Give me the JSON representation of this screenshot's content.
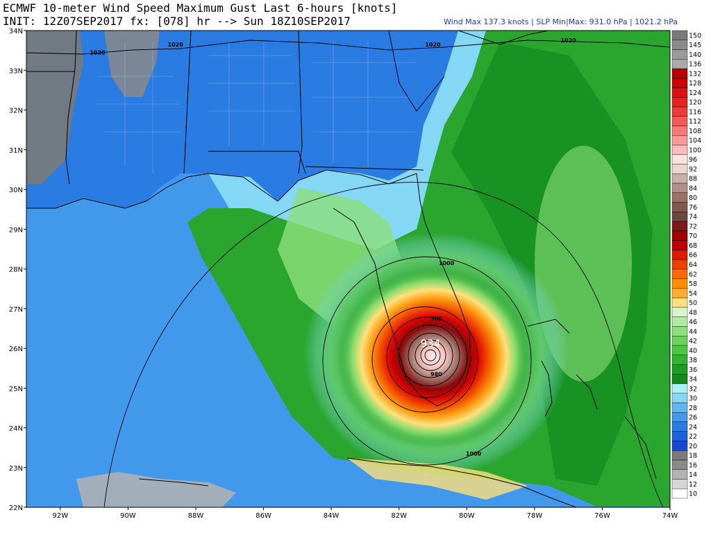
{
  "header": {
    "title": "ECMWF 10-meter Wind Speed Maximum Gust Last 6-hours [knots]",
    "subtitle": "INIT: 12Z07SEP2017 fx: [078] hr --> Sun 18Z10SEP2017",
    "stats": "Wind Max 137.3 knots | SLP Min|Max: 931.0 hPa | 1021.2 hPa"
  },
  "map": {
    "lat_labels": [
      "34N",
      "33N",
      "32N",
      "31N",
      "30N",
      "29N",
      "28N",
      "27N",
      "26N",
      "25N",
      "24N",
      "23N",
      "22N"
    ],
    "lon_labels": [
      "92W",
      "90W",
      "88W",
      "86W",
      "84W",
      "82W",
      "80W",
      "78W",
      "76W",
      "74W"
    ],
    "center_pressure_label": "934",
    "isobar_labels": [
      {
        "text": "1020",
        "lon": -88.6,
        "lat": 33.6
      },
      {
        "text": "1020",
        "lon": -90.9,
        "lat": 33.4
      },
      {
        "text": "1020",
        "lon": -81.0,
        "lat": 33.6
      },
      {
        "text": "1020",
        "lon": -77.0,
        "lat": 33.7
      },
      {
        "text": "1000",
        "lon": -80.6,
        "lat": 28.1
      },
      {
        "text": "980",
        "lon": -80.9,
        "lat": 26.7
      },
      {
        "text": "980",
        "lon": -80.9,
        "lat": 25.3
      },
      {
        "text": "1000",
        "lon": -79.8,
        "lat": 23.3
      }
    ]
  },
  "colorbar": {
    "levels": [
      "150",
      "145",
      "140",
      "136",
      "132",
      "128",
      "124",
      "120",
      "116",
      "112",
      "108",
      "104",
      "100",
      "96",
      "92",
      "88",
      "84",
      "80",
      "76",
      "74",
      "72",
      "70",
      "68",
      "66",
      "64",
      "62",
      "58",
      "54",
      "50",
      "48",
      "46",
      "44",
      "42",
      "40",
      "38",
      "36",
      "34",
      "32",
      "30",
      "28",
      "26",
      "24",
      "22",
      "20",
      "18",
      "16",
      "14",
      "12",
      "10"
    ],
    "colors": [
      "#7a7a7a",
      "#8a8a8a",
      "#9a9a9a",
      "#aaaaaa",
      "#ba0000",
      "#cc0000",
      "#dc1010",
      "#e82020",
      "#ec3b3b",
      "#f05a5a",
      "#f47a7a",
      "#f89a9a",
      "#fbbcbc",
      "#f7e4e0",
      "#e9d6cf",
      "#c9b0a8",
      "#b29088",
      "#9a7268",
      "#805850",
      "#6a463e",
      "#7a1a1a",
      "#a00000",
      "#c00000",
      "#e01a00",
      "#f04000",
      "#f86a00",
      "#fb8c00",
      "#fcae2c",
      "#fde17a",
      "#d8f4c8",
      "#b0eca0",
      "#8ce07a",
      "#6ad35a",
      "#4fc443",
      "#35b232",
      "#1f9c27",
      "#118a1e",
      "#a9f1f8",
      "#84d8f6",
      "#5fb7f1",
      "#4298eb",
      "#2a7be2",
      "#1d61dc",
      "#1549cf",
      "#7a7a7a",
      "#8a8a8a",
      "#b3b3b3",
      "#d6d6d6",
      "#ffffff"
    ]
  }
}
